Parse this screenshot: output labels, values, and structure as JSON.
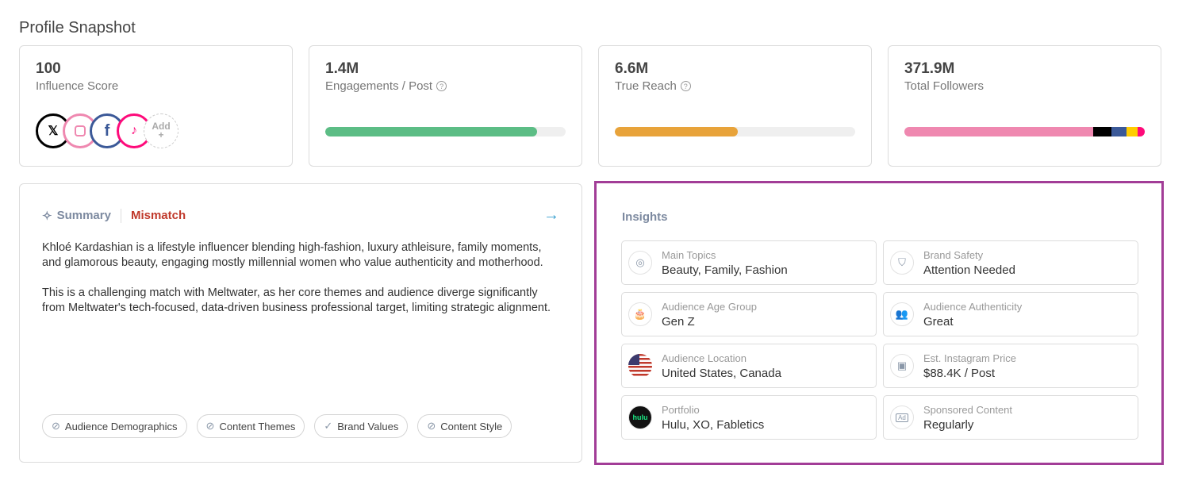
{
  "page_title": "Profile Snapshot",
  "stats": [
    {
      "value": "100",
      "label": "Influence Score"
    },
    {
      "value": "1.4M",
      "label": "Engagements / Post",
      "progress": 0.88,
      "color": "#5cbd85"
    },
    {
      "value": "6.6M",
      "label": "True Reach",
      "progress": 0.51,
      "color": "#e8a33a"
    },
    {
      "value": "371.9M",
      "label": "Total Followers",
      "segments": [
        {
          "platform": "instagram",
          "fraction": 0.785,
          "color": "#ef88b0"
        },
        {
          "platform": "x",
          "fraction": 0.076,
          "color": "#000000"
        },
        {
          "platform": "facebook",
          "fraction": 0.063,
          "color": "#3b5998"
        },
        {
          "platform": "snapchat",
          "fraction": 0.046,
          "color": "#ffcc00"
        },
        {
          "platform": "tiktok",
          "fraction": 0.03,
          "color": "#fe0a7a"
        }
      ]
    }
  ],
  "socials": {
    "x": "𝕏",
    "facebook": "f",
    "tiktok": "♪",
    "add_label": "Add",
    "add_plus": "+"
  },
  "summary": {
    "title": "Summary",
    "match": "Mismatch",
    "arrow": "→",
    "paragraphs": [
      "Khloé Kardashian is a lifestyle influencer blending high-fashion, luxury athleisure, family moments, and glamorous beauty, engaging mostly millennial women who value authenticity and motherhood.",
      "This is a challenging match with Meltwater, as her core themes and audience diverge significantly from Meltwater's tech-focused, data-driven business professional target, limiting strategic alignment."
    ],
    "chips": [
      {
        "label": "Audience Demographics",
        "icon": "⃠"
      },
      {
        "label": "Content Themes",
        "icon": "⃠"
      },
      {
        "label": "Brand Values",
        "icon": "✓"
      },
      {
        "label": "Content Style",
        "icon": "⃠"
      }
    ]
  },
  "insights": {
    "title": "Insights",
    "items": [
      {
        "label": "Main Topics",
        "value": "Beauty, Family, Fashion",
        "icon": "◎"
      },
      {
        "label": "Brand Safety",
        "value": "Attention Needed",
        "icon": "⛉"
      },
      {
        "label": "Audience Age Group",
        "value": "Gen Z",
        "icon": "🎂"
      },
      {
        "label": "Audience Authenticity",
        "value": "Great",
        "icon": "👥"
      },
      {
        "label": "Audience Location",
        "value": "United States, Canada",
        "icon": ""
      },
      {
        "label": "Est. Instagram Price",
        "value": "$88.4K / Post",
        "icon": "▣"
      },
      {
        "label": "Portfolio",
        "value": "Hulu, XO, Fabletics",
        "icon": "hulu"
      },
      {
        "label": "Sponsored Content",
        "value": "Regularly",
        "icon": "Ad"
      }
    ]
  }
}
